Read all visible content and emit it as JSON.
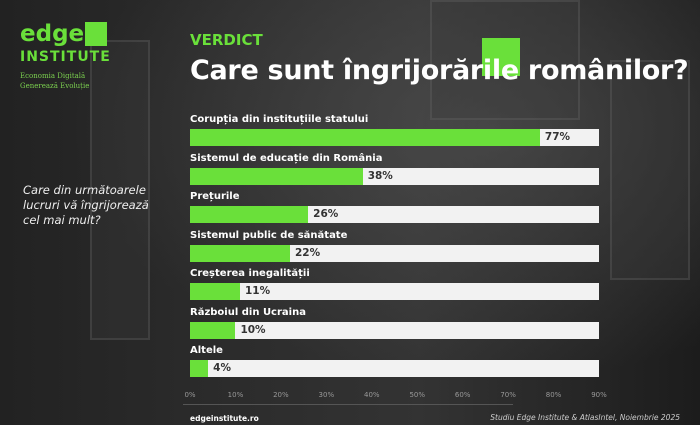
{
  "logo": {
    "word": "edge",
    "sub": "INSTITUTE",
    "tagline1": "Economia Digitală",
    "tagline2": "Generează Evoluție"
  },
  "verdict": "VERDICT",
  "question": "Care din următoarele lucruri vă îngrijorează cel mai mult?",
  "footer": {
    "site": "edgeinstitute.ro",
    "source": "Studiu Edge Institute & AtlasIntel, Noiembrie 2025"
  },
  "colors": {
    "accent": "#6ae03a",
    "track": "#f2f2f2"
  },
  "chart_data": {
    "type": "bar",
    "orientation": "horizontal",
    "title": "Care sunt îngrijorările românilor?",
    "categories": [
      "Corupția din instituțiile statului",
      "Sistemul de educație din România",
      "Prețurile",
      "Sistemul public de sănătate",
      "Creșterea inegalității",
      "Războiul din Ucraina",
      "Altele"
    ],
    "values": [
      77,
      38,
      26,
      22,
      11,
      10,
      4
    ],
    "labels": [
      "77%",
      "38%",
      "26%",
      "22%",
      "11%",
      "10%",
      "4%"
    ],
    "xlim": [
      0,
      90
    ],
    "xticks": [
      "0%",
      "10%",
      "20%",
      "30%",
      "40%",
      "50%",
      "60%",
      "70%",
      "80%",
      "90%"
    ]
  }
}
